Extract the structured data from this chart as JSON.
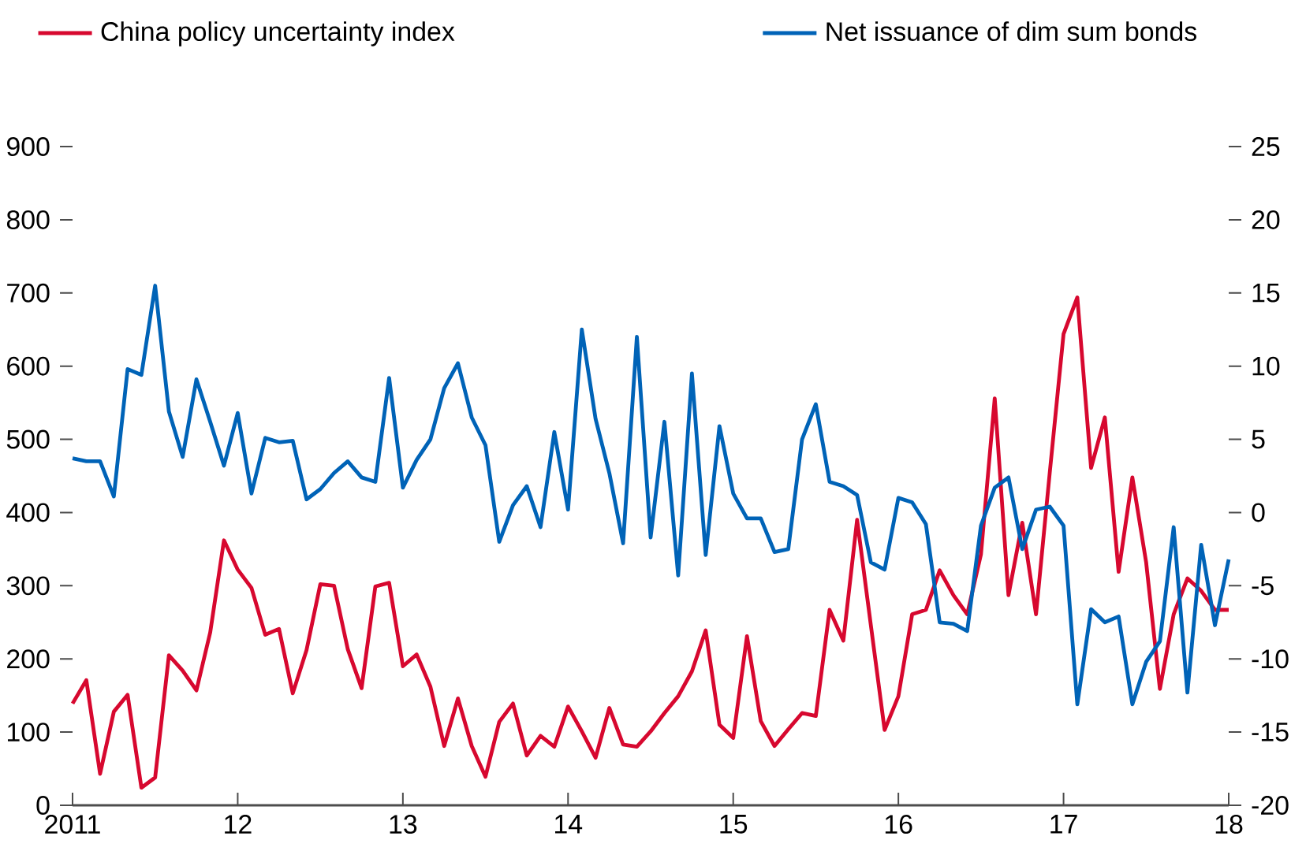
{
  "chart_data": {
    "type": "line",
    "legend": "top",
    "x": [
      "2011-01",
      "2011-02",
      "2011-03",
      "2011-04",
      "2011-05",
      "2011-06",
      "2011-07",
      "2011-08",
      "2011-09",
      "2011-10",
      "2011-11",
      "2011-12",
      "2012-01",
      "2012-02",
      "2012-03",
      "2012-04",
      "2012-05",
      "2012-06",
      "2012-07",
      "2012-08",
      "2012-09",
      "2012-10",
      "2012-11",
      "2012-12",
      "2013-01",
      "2013-02",
      "2013-03",
      "2013-04",
      "2013-05",
      "2013-06",
      "2013-07",
      "2013-08",
      "2013-09",
      "2013-10",
      "2013-11",
      "2013-12",
      "2014-01",
      "2014-02",
      "2014-03",
      "2014-04",
      "2014-05",
      "2014-06",
      "2014-07",
      "2014-08",
      "2014-09",
      "2014-10",
      "2014-11",
      "2014-12",
      "2015-01",
      "2015-02",
      "2015-03",
      "2015-04",
      "2015-05",
      "2015-06",
      "2015-07",
      "2015-08",
      "2015-09",
      "2015-10",
      "2015-11",
      "2015-12",
      "2016-01",
      "2016-02",
      "2016-03",
      "2016-04",
      "2016-05",
      "2016-06",
      "2016-07",
      "2016-08",
      "2016-09",
      "2016-10",
      "2016-11",
      "2016-12",
      "2017-01",
      "2017-02",
      "2017-03",
      "2017-04",
      "2017-05",
      "2017-06",
      "2017-07",
      "2017-08",
      "2017-09",
      "2017-10",
      "2017-11",
      "2017-12",
      "2018-01"
    ],
    "xlim": [
      "2011-01",
      "2018-01"
    ],
    "xticks": [
      {
        "value": "2011",
        "label": "2011"
      },
      {
        "value": "2012",
        "label": "12"
      },
      {
        "value": "2013",
        "label": "13"
      },
      {
        "value": "2014",
        "label": "14"
      },
      {
        "value": "2015",
        "label": "15"
      },
      {
        "value": "2016",
        "label": "16"
      },
      {
        "value": "2017",
        "label": "17"
      },
      {
        "value": "2018",
        "label": "18"
      }
    ],
    "ylim": [
      0,
      900
    ],
    "yticks": [
      0,
      100,
      200,
      300,
      400,
      500,
      600,
      700,
      800,
      900
    ],
    "y2lim": [
      -20,
      25
    ],
    "y2ticks": [
      -20,
      -15,
      -10,
      -5,
      0,
      5,
      10,
      15,
      20,
      25
    ],
    "series": [
      {
        "name": "China policy uncertainty index",
        "color": "#d7082f",
        "values": [
          139,
          171,
          43,
          128,
          151,
          24,
          38,
          205,
          184,
          157,
          236,
          362,
          322,
          297,
          233,
          241,
          153,
          212,
          302,
          300,
          213,
          160,
          299,
          304,
          190,
          206,
          162,
          81,
          146,
          81,
          39,
          114,
          139,
          68,
          95,
          80,
          135,
          101,
          65,
          133,
          83,
          80,
          101,
          126,
          149,
          183,
          239,
          110,
          92,
          231,
          115,
          81,
          104,
          126,
          122,
          267,
          225,
          390,
          246,
          103,
          149,
          261,
          267,
          321,
          287,
          261,
          343,
          556,
          287,
          386,
          261,
          455,
          644,
          694,
          461,
          530,
          319,
          448,
          332,
          159,
          261,
          310,
          293,
          267,
          267
        ]
      },
      {
        "name": "Net issuance of dim sum bonds",
        "color": "#0063b7",
        "axis": "y2",
        "values": [
          3.7,
          3.5,
          3.5,
          1.1,
          9.8,
          9.4,
          15.5,
          6.9,
          3.8,
          9.1,
          6.2,
          3.2,
          6.8,
          1.3,
          5.1,
          4.8,
          4.9,
          0.9,
          1.6,
          2.7,
          3.5,
          2.4,
          2.1,
          9.2,
          1.7,
          3.6,
          5.0,
          8.5,
          10.2,
          6.5,
          4.6,
          -2.0,
          0.5,
          1.8,
          -1.0,
          5.5,
          0.2,
          12.5,
          6.4,
          2.7,
          -2.1,
          12.0,
          -1.7,
          6.2,
          -4.3,
          9.5,
          -2.9,
          5.9,
          1.3,
          -0.4,
          -0.4,
          -2.7,
          -2.5,
          5.0,
          7.4,
          2.1,
          1.8,
          1.2,
          -3.4,
          -3.9,
          1.0,
          0.7,
          -0.8,
          -7.5,
          -7.6,
          -8.1,
          -0.9,
          1.7,
          2.4,
          -2.5,
          0.2,
          0.4,
          -0.9,
          -13.1,
          -6.6,
          -7.5,
          -7.1,
          -13.1,
          -10.2,
          -8.8,
          -1.0,
          -12.3,
          -2.2,
          -7.7,
          -3.2
        ]
      }
    ]
  }
}
